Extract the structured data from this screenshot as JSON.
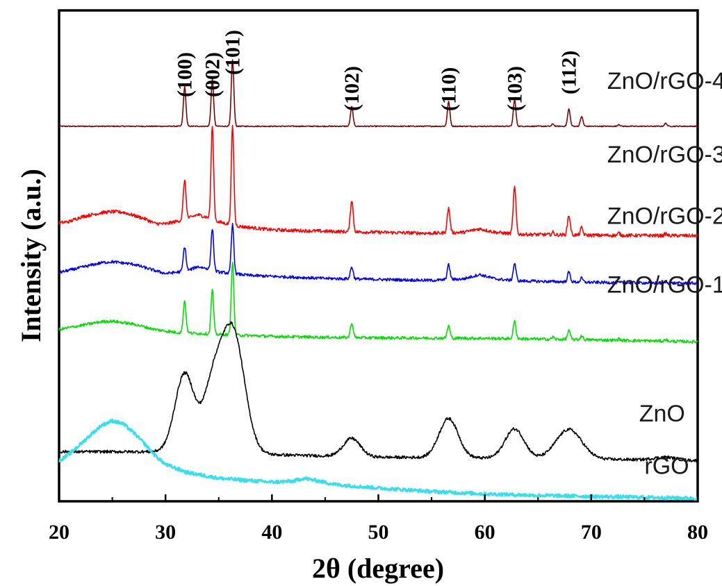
{
  "chart_data": {
    "type": "line",
    "title": "",
    "xlabel": "2θ (degree)",
    "ylabel": "Intensity (a.u.)",
    "xlim": [
      20,
      80
    ],
    "ylim": [
      0,
      100
    ],
    "xticks": [
      20,
      30,
      40,
      50,
      60,
      70,
      80
    ],
    "grid": false,
    "legend": "none",
    "peak_labels": [
      {
        "text": "(100)",
        "x": 31.8
      },
      {
        "text": "(002)",
        "x": 34.4
      },
      {
        "text": "(101)",
        "x": 36.3
      },
      {
        "text": "(102)",
        "x": 47.5
      },
      {
        "text": "(110)",
        "x": 56.6
      },
      {
        "text": "(103)",
        "x": 62.8
      },
      {
        "text": "(112)",
        "x": 67.9
      }
    ],
    "series": [
      {
        "name": "ZnO/rGO-4",
        "color": "#800000",
        "label_x": 71.5,
        "label_y": 84,
        "baseline": [
          [
            20,
            76.4
          ],
          [
            80,
            76.4
          ]
        ],
        "peaks": [
          [
            31.8,
            8.0,
            0.12
          ],
          [
            34.4,
            9.5,
            0.12
          ],
          [
            36.3,
            13.5,
            0.12
          ],
          [
            47.5,
            4.0,
            0.12
          ],
          [
            56.6,
            5.0,
            0.12
          ],
          [
            62.8,
            5.4,
            0.12
          ],
          [
            66.4,
            0.5,
            0.1
          ],
          [
            67.9,
            3.5,
            0.12
          ],
          [
            69.1,
            2.0,
            0.12
          ],
          [
            72.6,
            0.4,
            0.1
          ],
          [
            77.0,
            0.6,
            0.12
          ]
        ],
        "noise": 0.1
      },
      {
        "name": "ZnO/rGO-3",
        "color": "#ff0000",
        "label_x": 71.5,
        "label_y": 69,
        "baseline": [
          [
            20,
            56.7
          ],
          [
            21,
            57.0
          ],
          [
            22,
            57.9
          ],
          [
            24,
            58.8
          ],
          [
            25,
            59.0
          ],
          [
            26,
            58.9
          ],
          [
            28,
            57.6
          ],
          [
            29,
            56.6
          ],
          [
            30,
            56.5
          ],
          [
            32,
            57.5
          ],
          [
            33,
            58.4
          ],
          [
            34,
            57.8
          ],
          [
            35,
            56.9
          ],
          [
            37,
            56.0
          ],
          [
            40,
            55.3
          ],
          [
            45,
            55.0
          ],
          [
            50,
            54.8
          ],
          [
            55,
            54.6
          ],
          [
            58,
            54.8
          ],
          [
            59.5,
            55.5
          ],
          [
            61,
            54.8
          ],
          [
            63,
            54.4
          ],
          [
            70,
            54.2
          ],
          [
            80,
            54.1
          ]
        ],
        "peaks": [
          [
            31.8,
            8.0,
            0.13
          ],
          [
            34.4,
            19.0,
            0.12
          ],
          [
            36.3,
            20.0,
            0.12
          ],
          [
            47.5,
            6.5,
            0.13
          ],
          [
            56.6,
            5.0,
            0.13
          ],
          [
            62.8,
            9.5,
            0.13
          ],
          [
            66.4,
            0.5,
            0.1
          ],
          [
            67.9,
            4.0,
            0.13
          ],
          [
            69.1,
            1.5,
            0.12
          ],
          [
            72.6,
            0.5,
            0.1
          ],
          [
            77.0,
            0.4,
            0.1
          ]
        ],
        "noise": 0.35
      },
      {
        "name": "ZnO/rGO-2",
        "color": "#0000ff",
        "label_x": 71.5,
        "label_y": 56.5,
        "baseline": [
          [
            20,
            46.6
          ],
          [
            22,
            47.6
          ],
          [
            24,
            48.6
          ],
          [
            25,
            48.8
          ],
          [
            27,
            48.3
          ],
          [
            29,
            47.0
          ],
          [
            30,
            46.4
          ],
          [
            32,
            46.9
          ],
          [
            33,
            47.8
          ],
          [
            34,
            47.4
          ],
          [
            35,
            46.7
          ],
          [
            38,
            46.0
          ],
          [
            45,
            45.4
          ],
          [
            55,
            45.0
          ],
          [
            58,
            45.3
          ],
          [
            59.5,
            46.2
          ],
          [
            61,
            45.3
          ],
          [
            63,
            44.9
          ],
          [
            70,
            44.6
          ],
          [
            80,
            44.4
          ]
        ],
        "peaks": [
          [
            31.8,
            5.0,
            0.13
          ],
          [
            34.4,
            8.5,
            0.12
          ],
          [
            36.3,
            10.0,
            0.12
          ],
          [
            47.5,
            2.5,
            0.13
          ],
          [
            56.6,
            3.0,
            0.13
          ],
          [
            62.8,
            3.5,
            0.13
          ],
          [
            67.9,
            2.0,
            0.13
          ],
          [
            69.1,
            0.8,
            0.12
          ],
          [
            77.0,
            0.3,
            0.1
          ]
        ],
        "noise": 0.3
      },
      {
        "name": "ZnO/rGO-1",
        "color": "#00e000",
        "label_x": 71.5,
        "label_y": 42.5,
        "baseline": [
          [
            20,
            35.0
          ],
          [
            22,
            35.8
          ],
          [
            24,
            36.6
          ],
          [
            25,
            36.7
          ],
          [
            27,
            36.1
          ],
          [
            29,
            35.0
          ],
          [
            31,
            34.4
          ],
          [
            35,
            34.0
          ],
          [
            40,
            33.6
          ],
          [
            45,
            33.4
          ],
          [
            50,
            33.3
          ],
          [
            60,
            33.2
          ],
          [
            70,
            32.9
          ],
          [
            80,
            32.5
          ]
        ],
        "peaks": [
          [
            31.8,
            6.5,
            0.13
          ],
          [
            34.4,
            9.0,
            0.12
          ],
          [
            36.3,
            15.0,
            0.12
          ],
          [
            47.5,
            3.0,
            0.13
          ],
          [
            56.6,
            2.5,
            0.13
          ],
          [
            62.8,
            3.5,
            0.13
          ],
          [
            66.4,
            0.5,
            0.1
          ],
          [
            67.9,
            1.8,
            0.13
          ],
          [
            69.1,
            0.8,
            0.12
          ],
          [
            72.6,
            0.3,
            0.1
          ],
          [
            77.0,
            0.4,
            0.1
          ]
        ],
        "noise": 0.3
      },
      {
        "name": "ZnO",
        "color": "#000000",
        "label_x": 74.5,
        "label_y": 16.3,
        "baseline": [
          [
            20,
            10.1
          ],
          [
            25,
            10.1
          ],
          [
            30,
            10.1
          ],
          [
            40,
            9.5
          ],
          [
            50,
            9.0
          ],
          [
            60,
            8.8
          ],
          [
            70,
            8.6
          ],
          [
            80,
            8.3
          ]
        ],
        "peaks": [
          [
            31.8,
            16.0,
            0.9
          ],
          [
            34.4,
            12.0,
            0.9
          ],
          [
            36.3,
            25.0,
            1.1
          ],
          [
            47.5,
            3.7,
            0.8
          ],
          [
            56.6,
            8.0,
            0.9
          ],
          [
            62.8,
            6.0,
            0.9
          ],
          [
            67.9,
            6.0,
            1.2
          ],
          [
            76.9,
            0.6,
            1.0
          ]
        ],
        "noise": 0.3
      },
      {
        "name": "rGO",
        "color": "#33e0f0",
        "label_x": 75.0,
        "label_y": 5.6,
        "baseline": [
          [
            20,
            8.2
          ],
          [
            21,
            9.7
          ],
          [
            22,
            11.6
          ],
          [
            23,
            13.6
          ],
          [
            24,
            15.5
          ],
          [
            25,
            16.4
          ],
          [
            26,
            15.8
          ],
          [
            27,
            14.0
          ],
          [
            28,
            11.8
          ],
          [
            29,
            9.4
          ],
          [
            30,
            7.5
          ],
          [
            32,
            5.9
          ],
          [
            35,
            4.7
          ],
          [
            38,
            4.2
          ],
          [
            40,
            3.9
          ],
          [
            42,
            4.1
          ],
          [
            43,
            4.7
          ],
          [
            44,
            4.3
          ],
          [
            46,
            3.4
          ],
          [
            50,
            2.7
          ],
          [
            55,
            2.0
          ],
          [
            60,
            1.5
          ],
          [
            65,
            1.2
          ],
          [
            70,
            1.0
          ],
          [
            75,
            0.8
          ],
          [
            80,
            0.6
          ]
        ],
        "peaks": [],
        "noise": 0.35
      }
    ]
  }
}
